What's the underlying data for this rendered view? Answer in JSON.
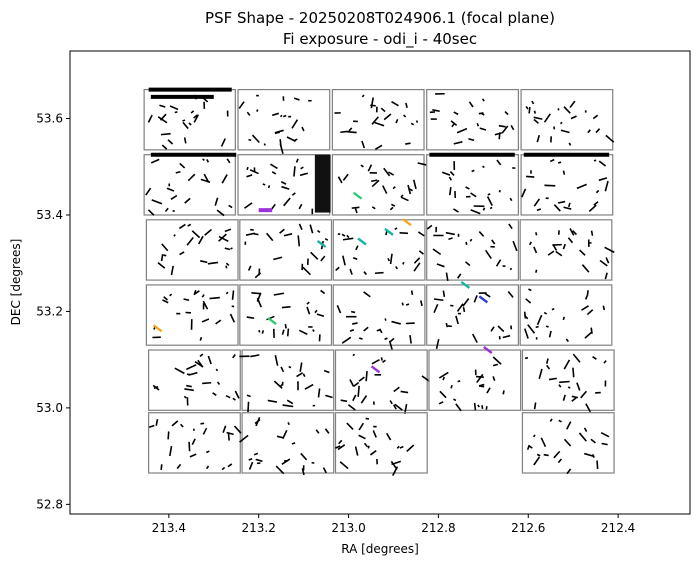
{
  "chart_data": {
    "type": "scatter",
    "title": "PSF Shape - 20250208T024906.1 (focal plane)",
    "subtitle": "Fi exposure - odi_i - 40sec",
    "xlabel": "RA [degrees]",
    "ylabel": "DEC [degrees]",
    "xlim": [
      213.62,
      212.24
    ],
    "ylim": [
      52.78,
      53.74
    ],
    "x_inverted": true,
    "xticks": [
      213.4,
      213.2,
      213.0,
      212.8,
      212.6,
      212.4
    ],
    "xtick_labels": [
      "213.4",
      "213.2",
      "213.0",
      "212.8",
      "212.6",
      "212.4"
    ],
    "yticks": [
      52.8,
      53.0,
      53.2,
      53.4,
      53.6
    ],
    "ytick_labels": [
      "52.8",
      "53.0",
      "53.2",
      "53.4",
      "53.6"
    ],
    "grid": false,
    "ota_outline_color": "#808080",
    "colors": {
      "normal": "#000000",
      "purple": "#9b30d9",
      "green": "#2ecc71",
      "teal": "#17b3a3",
      "orange": "#f5a623",
      "blue": "#2a3fd6"
    },
    "ota_cells": [
      {
        "x0": 213.455,
        "x1": 213.252,
        "y0": 53.535,
        "y1": 53.66
      },
      {
        "x0": 213.246,
        "x1": 213.042,
        "y0": 53.535,
        "y1": 53.66
      },
      {
        "x0": 213.036,
        "x1": 212.832,
        "y0": 53.535,
        "y1": 53.66
      },
      {
        "x0": 212.826,
        "x1": 212.622,
        "y0": 53.535,
        "y1": 53.66
      },
      {
        "x0": 212.616,
        "x1": 212.412,
        "y0": 53.535,
        "y1": 53.66
      },
      {
        "x0": 213.455,
        "x1": 213.252,
        "y0": 53.4,
        "y1": 53.525
      },
      {
        "x0": 213.246,
        "x1": 213.042,
        "y0": 53.4,
        "y1": 53.525
      },
      {
        "x0": 213.036,
        "x1": 212.832,
        "y0": 53.4,
        "y1": 53.525
      },
      {
        "x0": 212.826,
        "x1": 212.622,
        "y0": 53.4,
        "y1": 53.525
      },
      {
        "x0": 212.616,
        "x1": 212.412,
        "y0": 53.4,
        "y1": 53.525
      },
      {
        "x0": 213.45,
        "x1": 213.246,
        "y0": 53.265,
        "y1": 53.39
      },
      {
        "x0": 213.242,
        "x1": 213.038,
        "y0": 53.265,
        "y1": 53.39
      },
      {
        "x0": 213.034,
        "x1": 212.83,
        "y0": 53.265,
        "y1": 53.39
      },
      {
        "x0": 212.826,
        "x1": 212.622,
        "y0": 53.265,
        "y1": 53.39
      },
      {
        "x0": 212.618,
        "x1": 212.414,
        "y0": 53.265,
        "y1": 53.39
      },
      {
        "x0": 213.45,
        "x1": 213.246,
        "y0": 53.13,
        "y1": 53.255
      },
      {
        "x0": 213.242,
        "x1": 213.038,
        "y0": 53.13,
        "y1": 53.255
      },
      {
        "x0": 213.034,
        "x1": 212.83,
        "y0": 53.13,
        "y1": 53.255
      },
      {
        "x0": 212.826,
        "x1": 212.622,
        "y0": 53.13,
        "y1": 53.255
      },
      {
        "x0": 212.618,
        "x1": 212.414,
        "y0": 53.13,
        "y1": 53.255
      },
      {
        "x0": 213.445,
        "x1": 213.241,
        "y0": 52.995,
        "y1": 53.12
      },
      {
        "x0": 213.237,
        "x1": 213.033,
        "y0": 52.995,
        "y1": 53.12
      },
      {
        "x0": 213.029,
        "x1": 212.825,
        "y0": 52.995,
        "y1": 53.12
      },
      {
        "x0": 212.821,
        "x1": 212.617,
        "y0": 52.995,
        "y1": 53.12
      },
      {
        "x0": 212.613,
        "x1": 212.409,
        "y0": 52.995,
        "y1": 53.12
      },
      {
        "x0": 213.445,
        "x1": 213.241,
        "y0": 52.865,
        "y1": 52.99
      },
      {
        "x0": 213.237,
        "x1": 213.033,
        "y0": 52.865,
        "y1": 52.99
      },
      {
        "x0": 213.029,
        "x1": 212.825,
        "y0": 52.865,
        "y1": 52.99
      },
      {
        "x0": 212.613,
        "x1": 212.409,
        "y0": 52.865,
        "y1": 52.99
      }
    ],
    "psf_dense_bands": [
      {
        "x0": 213.445,
        "x1": 213.26,
        "y": 53.66,
        "color": "#000000"
      },
      {
        "x0": 213.44,
        "x1": 213.3,
        "y": 53.645,
        "color": "#000000"
      },
      {
        "x0": 213.44,
        "x1": 213.25,
        "y": 53.525,
        "color": "#000000"
      },
      {
        "x0": 212.82,
        "x1": 212.63,
        "y": 53.525,
        "color": "#000000"
      },
      {
        "x0": 212.61,
        "x1": 212.42,
        "y": 53.525,
        "color": "#000000"
      },
      {
        "x0": 213.2,
        "x1": 213.17,
        "y": 53.41,
        "color": "#9b30d9"
      }
    ],
    "psf_dense_block": {
      "x0": 213.075,
      "x1": 213.04,
      "y0": 53.405,
      "y1": 53.525
    },
    "psf_colored_sticks": [
      {
        "x": 213.425,
        "y": 53.165,
        "color": "#f5a623"
      },
      {
        "x": 213.17,
        "y": 53.18,
        "color": "#2ecc71"
      },
      {
        "x": 212.97,
        "y": 53.345,
        "color": "#17b3a3"
      },
      {
        "x": 212.91,
        "y": 53.365,
        "color": "#17b3a3"
      },
      {
        "x": 212.87,
        "y": 53.385,
        "color": "#f5a623"
      },
      {
        "x": 212.74,
        "y": 53.255,
        "color": "#17b3a3"
      },
      {
        "x": 212.7,
        "y": 53.225,
        "color": "#2a3fd6"
      },
      {
        "x": 212.94,
        "y": 53.08,
        "color": "#9b30d9"
      },
      {
        "x": 213.06,
        "y": 53.34,
        "color": "#17b3a3"
      },
      {
        "x": 212.98,
        "y": 53.44,
        "color": "#2ecc71"
      },
      {
        "x": 212.69,
        "y": 53.12,
        "color": "#9b30d9"
      }
    ]
  }
}
